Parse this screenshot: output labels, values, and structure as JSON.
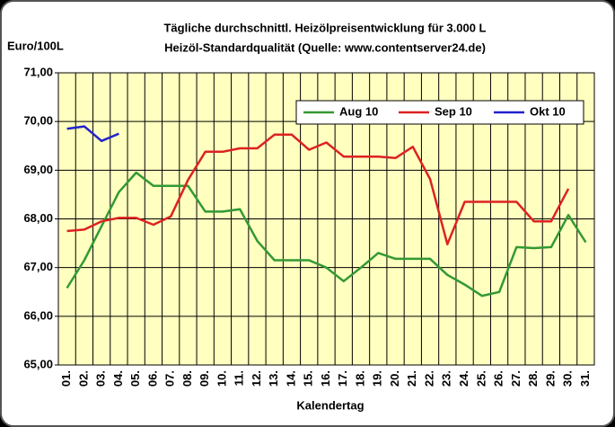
{
  "chart_data": {
    "type": "line",
    "title": "Tägliche durchschnittl. Heizölpreisentwicklung für 3.000 L",
    "subtitle": "Heizöl-Standardqualität (Quelle: www.contentserver24.de)",
    "ylabel": "Euro/100L",
    "xlabel": "Kalendertag",
    "categories": [
      "01.",
      "02.",
      "03.",
      "04.",
      "05.",
      "06.",
      "07.",
      "08.",
      "09.",
      "10.",
      "11.",
      "12.",
      "13.",
      "14.",
      "15.",
      "16.",
      "17.",
      "18.",
      "19.",
      "20.",
      "21.",
      "22.",
      "23.",
      "24.",
      "25.",
      "26.",
      "27.",
      "28.",
      "29.",
      "30.",
      "31."
    ],
    "series": [
      {
        "name": "Aug 10",
        "color": "#339933",
        "values": [
          66.58,
          67.15,
          67.85,
          68.55,
          68.95,
          68.68,
          68.68,
          68.68,
          68.15,
          68.15,
          68.2,
          67.55,
          67.15,
          67.15,
          67.15,
          67.0,
          66.72,
          67.0,
          67.3,
          67.18,
          67.18,
          67.18,
          66.85,
          66.65,
          66.42,
          66.5,
          67.42,
          67.4,
          67.42,
          68.08,
          67.52
        ]
      },
      {
        "name": "Sep 10",
        "color": "#dd2222",
        "values": [
          67.75,
          67.78,
          67.95,
          68.02,
          68.02,
          67.88,
          68.05,
          68.8,
          69.38,
          69.38,
          69.45,
          69.45,
          69.73,
          69.73,
          69.42,
          69.57,
          69.28,
          69.28,
          69.28,
          69.25,
          69.48,
          68.82,
          67.48,
          68.35,
          68.35,
          68.35,
          68.35,
          67.95,
          67.95,
          68.62,
          null
        ]
      },
      {
        "name": "Okt 10",
        "color": "#2222cc",
        "values": [
          69.85,
          69.9,
          69.6,
          69.75,
          null,
          null,
          null,
          null,
          null,
          null,
          null,
          null,
          null,
          null,
          null,
          null,
          null,
          null,
          null,
          null,
          null,
          null,
          null,
          null,
          null,
          null,
          null,
          null,
          null,
          null,
          null
        ]
      }
    ],
    "ylim": [
      65,
      71
    ],
    "yticks": [
      {
        "value": 65,
        "label": "65,00"
      },
      {
        "value": 66,
        "label": "66,00"
      },
      {
        "value": 67,
        "label": "67,00"
      },
      {
        "value": 68,
        "label": "68,00"
      },
      {
        "value": 69,
        "label": "69,00"
      },
      {
        "value": 70,
        "label": "70,00"
      },
      {
        "value": 71,
        "label": "71,00"
      }
    ],
    "grid": true,
    "legend": "top-right"
  }
}
